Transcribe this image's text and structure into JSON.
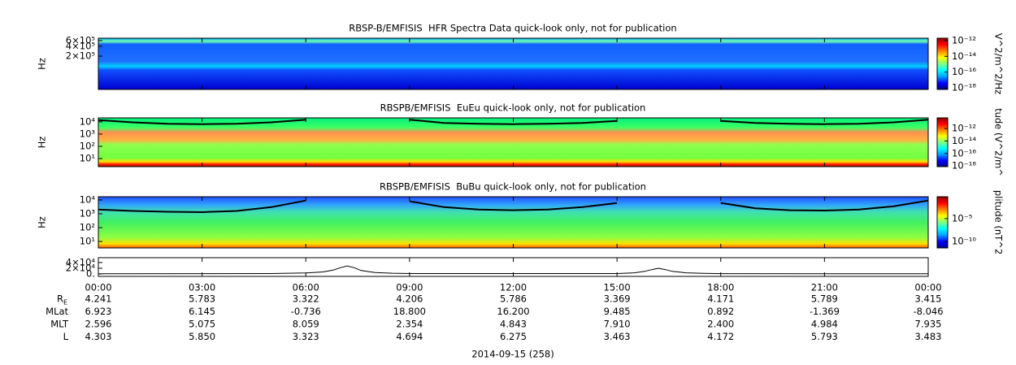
{
  "chart_data": [
    {
      "type": "spectrogram",
      "title": "RBSP-B/EMFISIS  HFR Spectra Data quick-look only, not for publication",
      "ylabel": "Hz",
      "ylim": [
        19000,
        710000
      ],
      "ylog": true,
      "yticks": [
        {
          "value": 200000,
          "label": "2×10⁵"
        },
        {
          "value": 400000,
          "label": "4×10⁵"
        },
        {
          "value": 600000,
          "label": "6×10⁵"
        }
      ],
      "xlim": [
        0,
        24
      ],
      "xticks": [
        0,
        3,
        6,
        9,
        12,
        15,
        18,
        21,
        24
      ],
      "colorbar": {
        "label": "V^2/m^2/Hz",
        "lim": [
          6.3e-19,
          2e-12
        ],
        "log": true,
        "ticks": [
          {
            "value": 1e-18,
            "label": "10⁻¹⁸"
          },
          {
            "value": 1e-16,
            "label": "10⁻¹⁶"
          },
          {
            "value": 1e-14,
            "label": "10⁻¹⁴"
          },
          {
            "value": 1e-12,
            "label": "10⁻¹²"
          }
        ],
        "colormap": [
          "#000090",
          "#0000ff",
          "#00a0ff",
          "#00ffff",
          "#80ff80",
          "#ffff00",
          "#ff8000",
          "#ff0000",
          "#900000"
        ]
      }
    },
    {
      "type": "spectrogram",
      "title": "RBSPB/EMFISIS  EuEu quick-look only, not for publication",
      "ylabel": "Hz",
      "ylim": [
        2.2,
        21000
      ],
      "ylog": true,
      "yticks": [
        {
          "value": 10,
          "label": "10¹"
        },
        {
          "value": 100,
          "label": "10²"
        },
        {
          "value": 1000,
          "label": "10³"
        },
        {
          "value": 10000,
          "label": "10⁴"
        }
      ],
      "xlim": [
        0,
        24
      ],
      "xticks": [
        0,
        3,
        6,
        9,
        12,
        15,
        18,
        21,
        24
      ],
      "curve": {
        "color": "#000000",
        "x": [
          0,
          1,
          2,
          3,
          4,
          5,
          6,
          7,
          8,
          9,
          10,
          11,
          12,
          13,
          14,
          15,
          16,
          17,
          18,
          19,
          20,
          21,
          22,
          23,
          24
        ],
        "values": [
          14000,
          9000,
          7000,
          6500,
          7000,
          9000,
          15000,
          null,
          null,
          15000,
          8000,
          7000,
          6500,
          7000,
          8000,
          12000,
          null,
          null,
          12000,
          8000,
          7000,
          6500,
          7000,
          9000,
          15000
        ]
      },
      "colorbar": {
        "label": "tude (V^2/m^",
        "lim": [
          7.9e-19,
          5e-11
        ],
        "log": true,
        "ticks": [
          {
            "value": 1e-18,
            "label": "10⁻¹⁸"
          },
          {
            "value": 1e-16,
            "label": "10⁻¹⁶"
          },
          {
            "value": 1e-14,
            "label": "10⁻¹⁴"
          },
          {
            "value": 1e-12,
            "label": "10⁻¹²"
          }
        ],
        "colormap": [
          "#000090",
          "#0000ff",
          "#00a0ff",
          "#00ffff",
          "#80ff80",
          "#ffff00",
          "#ff8000",
          "#ff0000",
          "#900000"
        ]
      }
    },
    {
      "type": "spectrogram",
      "title": "RBSPB/EMFISIS  BuBu quick-look only, not for publication",
      "ylabel": "Hz",
      "ylim": [
        3.4,
        17000
      ],
      "ylog": true,
      "yticks": [
        {
          "value": 10,
          "label": "10¹"
        },
        {
          "value": 100,
          "label": "10²"
        },
        {
          "value": 1000,
          "label": "10³"
        },
        {
          "value": 10000,
          "label": "10⁴"
        }
      ],
      "xlim": [
        0,
        24
      ],
      "xticks": [
        0,
        3,
        6,
        9,
        12,
        15,
        18,
        21,
        24
      ],
      "curve": {
        "color": "#000000",
        "x": [
          0,
          1,
          2,
          3,
          4,
          5,
          6,
          7,
          8,
          9,
          10,
          11,
          12,
          13,
          14,
          15,
          16,
          17,
          18,
          19,
          20,
          21,
          22,
          23,
          24
        ],
        "values": [
          2000,
          1600,
          1400,
          1300,
          1600,
          3000,
          9000,
          null,
          null,
          8000,
          3000,
          2000,
          1800,
          2000,
          3000,
          6000,
          null,
          null,
          6000,
          2500,
          1800,
          1700,
          2000,
          3500,
          9000
        ]
      },
      "colorbar": {
        "label": "plitude (nT^2",
        "lim": [
          4e-12,
          0.6
        ],
        "log": true,
        "ticks": [
          {
            "value": 1e-10,
            "label": "10⁻¹⁰"
          },
          {
            "value": 1e-05,
            "label": "10⁻⁵"
          }
        ],
        "colormap": [
          "#000090",
          "#0000ff",
          "#00a0ff",
          "#00ffff",
          "#80ff80",
          "#ffff00",
          "#ff8000",
          "#ff0000",
          "#900000"
        ]
      }
    },
    {
      "type": "line",
      "ylim": [
        -8600,
        57000
      ],
      "yticks": [
        {
          "value": 0,
          "label": "0."
        },
        {
          "value": 20000,
          "label": "2×10⁴"
        },
        {
          "value": 40000,
          "label": "4×10⁴"
        }
      ],
      "xlim": [
        0,
        24
      ],
      "xticks": [
        {
          "value": 0,
          "label": "00:00"
        },
        {
          "value": 3,
          "label": "03:00"
        },
        {
          "value": 6,
          "label": "06:00"
        },
        {
          "value": 9,
          "label": "09:00"
        },
        {
          "value": 12,
          "label": "12:00"
        },
        {
          "value": 15,
          "label": "15:00"
        },
        {
          "value": 18,
          "label": "18:00"
        },
        {
          "value": 21,
          "label": "21:00"
        },
        {
          "value": 24,
          "label": "00:00"
        }
      ],
      "color": "#000000",
      "x": [
        0,
        5,
        6,
        6.5,
        6.8,
        7.0,
        7.2,
        7.4,
        7.6,
        8.0,
        8.5,
        9,
        15,
        15.5,
        15.8,
        16.0,
        16.2,
        16.4,
        16.6,
        17.0,
        17.5,
        18,
        24
      ],
      "values": [
        500,
        1500,
        3500,
        7000,
        14000,
        22000,
        28000,
        22000,
        12000,
        5000,
        2500,
        1500,
        1500,
        4000,
        9000,
        15000,
        20000,
        15000,
        9000,
        4000,
        2000,
        1000,
        500
      ]
    }
  ],
  "ephemeris": {
    "rows": [
      {
        "label": "R",
        "subscript": "E",
        "values": [
          "4.241",
          "5.783",
          "3.322",
          "4.206",
          "5.786",
          "3.369",
          "4.171",
          "5.789",
          "3.415"
        ]
      },
      {
        "label": "MLat",
        "values": [
          "6.923",
          "6.145",
          "-0.736",
          "18.800",
          "16.200",
          "9.485",
          "0.892",
          "-1.369",
          "-8.046"
        ]
      },
      {
        "label": "MLT",
        "values": [
          "2.596",
          "5.075",
          "8.059",
          "2.354",
          "4.843",
          "7.910",
          "2.400",
          "4.984",
          "7.935"
        ]
      },
      {
        "label": "L",
        "values": [
          "4.303",
          "5.850",
          "3.323",
          "4.694",
          "6.275",
          "3.463",
          "4.172",
          "5.793",
          "3.483"
        ]
      }
    ]
  },
  "date_label": "2014-09-15 (258)"
}
